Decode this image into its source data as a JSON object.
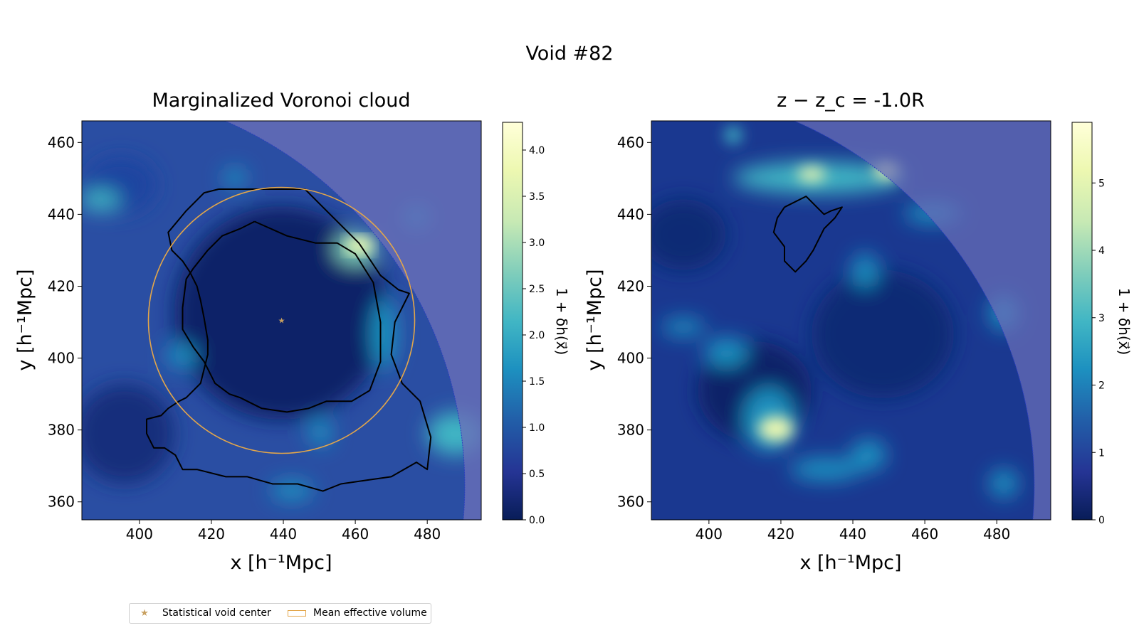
{
  "figure_title": "Void #82",
  "colors": {
    "colormap": [
      "#081d58",
      "#253494",
      "#225ea8",
      "#1d91c0",
      "#41b6c4",
      "#7fcdbb",
      "#c7e9b4",
      "#edf8b1",
      "#ffffd9"
    ],
    "survey_mask": "#6a6fb8",
    "contour": "#000000",
    "volume_circle": "#e3a64a",
    "center_marker": "#c8a060"
  },
  "chart_data": [
    {
      "type": "heatmap",
      "title": "Marginalized Voronoi cloud",
      "xlabel": "x [h⁻¹Mpc]",
      "ylabel": "y [h⁻¹Mpc]",
      "xlim": [
        384,
        495
      ],
      "ylim": [
        355,
        466
      ],
      "xticks": [
        400,
        420,
        440,
        460,
        480
      ],
      "yticks": [
        360,
        380,
        400,
        420,
        440,
        460
      ],
      "colorbar": {
        "label": "1 + δh(x⃗)",
        "range": [
          0,
          4.3
        ],
        "ticks": [
          0.0,
          0.5,
          1.0,
          1.5,
          2.0,
          2.5,
          3.0,
          3.5,
          4.0
        ]
      },
      "void_center": [
        439.5,
        410.5
      ],
      "effective_radius": 37,
      "contours": [
        [
          [
            422,
            447
          ],
          [
            428,
            447
          ],
          [
            446,
            447
          ],
          [
            451,
            442
          ],
          [
            461,
            432
          ],
          [
            467,
            423
          ],
          [
            472,
            419
          ],
          [
            475,
            418
          ],
          [
            471,
            410
          ],
          [
            470,
            401
          ],
          [
            473,
            393
          ],
          [
            478,
            388
          ],
          [
            481,
            378
          ],
          [
            480,
            369
          ],
          [
            477,
            371
          ],
          [
            470,
            367
          ],
          [
            463,
            366
          ],
          [
            456,
            365
          ],
          [
            451,
            363
          ],
          [
            444,
            365
          ],
          [
            437,
            365
          ],
          [
            430,
            367
          ],
          [
            424,
            367
          ],
          [
            416,
            369
          ],
          [
            412,
            369
          ],
          [
            410,
            373
          ],
          [
            407,
            375
          ],
          [
            404,
            375
          ],
          [
            403,
            377
          ],
          [
            402,
            379
          ],
          [
            402,
            383
          ],
          [
            406,
            384
          ],
          [
            408,
            386
          ],
          [
            411,
            388
          ],
          [
            413,
            389
          ],
          [
            417,
            393
          ],
          [
            418,
            397
          ],
          [
            419,
            401
          ],
          [
            419,
            405
          ],
          [
            418,
            411
          ],
          [
            417,
            416
          ],
          [
            416,
            420
          ],
          [
            414,
            424
          ],
          [
            412,
            427
          ],
          [
            409,
            430
          ],
          [
            408,
            435
          ],
          [
            413,
            441
          ],
          [
            418,
            446
          ],
          [
            422,
            447
          ]
        ],
        [
          [
            432,
            438
          ],
          [
            441,
            434
          ],
          [
            449,
            432
          ],
          [
            455,
            432
          ],
          [
            460,
            429
          ],
          [
            465,
            421
          ],
          [
            467,
            410
          ],
          [
            467,
            399
          ],
          [
            464,
            391
          ],
          [
            459,
            388
          ],
          [
            452,
            388
          ],
          [
            447,
            386
          ],
          [
            441,
            385
          ],
          [
            434,
            386
          ],
          [
            428,
            389
          ],
          [
            425,
            390
          ],
          [
            421,
            393
          ],
          [
            418,
            399
          ],
          [
            415,
            403
          ],
          [
            412,
            408
          ],
          [
            412,
            414
          ],
          [
            413,
            422
          ],
          [
            415,
            425
          ],
          [
            419,
            430
          ],
          [
            423,
            434
          ],
          [
            428,
            436
          ],
          [
            432,
            438
          ]
        ]
      ]
    },
    {
      "type": "heatmap",
      "title": "z − z_c = -1.0R",
      "xlabel": "x [h⁻¹Mpc]",
      "ylabel": "y [h⁻¹Mpc]",
      "xlim": [
        384,
        495
      ],
      "ylim": [
        355,
        466
      ],
      "xticks": [
        400,
        420,
        440,
        460,
        480
      ],
      "yticks": [
        360,
        380,
        400,
        420,
        440,
        460
      ],
      "colorbar": {
        "label": "1 + δh(x⃗)",
        "range": [
          0,
          5.9
        ],
        "ticks": [
          0,
          1,
          2,
          3,
          4,
          5
        ]
      },
      "contours": [
        [
          [
            421,
            442
          ],
          [
            427,
            445
          ],
          [
            429,
            443
          ],
          [
            432,
            440
          ],
          [
            434,
            441
          ],
          [
            437,
            442
          ],
          [
            435,
            439
          ],
          [
            432,
            436
          ],
          [
            429,
            430
          ],
          [
            427,
            427
          ],
          [
            424,
            424
          ],
          [
            421,
            427
          ],
          [
            421,
            431
          ],
          [
            418,
            435
          ],
          [
            419,
            439
          ],
          [
            421,
            442
          ]
        ]
      ]
    }
  ],
  "legend": {
    "center_label": "Statistical void center",
    "volume_label": "Mean effective volume"
  }
}
